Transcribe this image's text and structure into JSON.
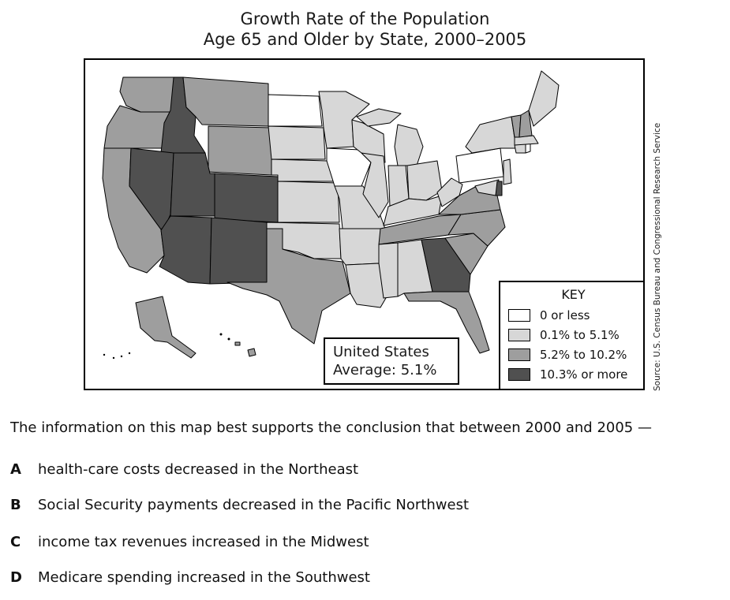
{
  "title": {
    "line1": "Growth Rate of the Population",
    "line2": "Age 65 and Older by State, 2000–2005"
  },
  "colors": {
    "cat1": "#ffffff",
    "cat2": "#d7d7d7",
    "cat3": "#9e9e9e",
    "cat4": "#505050",
    "border": "#000000"
  },
  "average_label": {
    "line1": "United States",
    "line2": "Average: 5.1%"
  },
  "key": {
    "title": "KEY",
    "items": [
      {
        "label": "0 or less",
        "color": "#ffffff"
      },
      {
        "label": "0.1% to 5.1%",
        "color": "#d7d7d7"
      },
      {
        "label": "5.2% to 10.2%",
        "color": "#9e9e9e"
      },
      {
        "label": "10.3% or more",
        "color": "#505050"
      }
    ]
  },
  "source": "Source: U.S. Census Bureau and Congressional Research Service",
  "states_by_category": {
    "0 or less": [
      "ND",
      "IA",
      "PA",
      "RI"
    ],
    "0.1% to 5.1%": [
      "MN",
      "SD",
      "NE",
      "KS",
      "OK",
      "MO",
      "AR",
      "LA",
      "MS",
      "AL",
      "WI",
      "MI",
      "IL",
      "IN",
      "OH",
      "KY",
      "WV",
      "NY",
      "NJ",
      "CT",
      "MA",
      "ME",
      "MD"
    ],
    "5.2% to 10.2%": [
      "WA",
      "OR",
      "CA",
      "MT",
      "WY",
      "TX",
      "TN",
      "VA",
      "NC",
      "SC",
      "FL",
      "VT",
      "NH",
      "HI",
      "AK"
    ],
    "10.3% or more": [
      "ID",
      "NV",
      "UT",
      "CO",
      "AZ",
      "NM",
      "GA",
      "DE"
    ]
  },
  "question": "The information on this map best supports the conclusion that between 2000 and 2005 —",
  "choices": [
    {
      "letter": "A",
      "text": "health-care costs decreased in the Northeast"
    },
    {
      "letter": "B",
      "text": "Social Security payments decreased in the Pacific Northwest"
    },
    {
      "letter": "C",
      "text": "income tax revenues increased in the Midwest"
    },
    {
      "letter": "D",
      "text": "Medicare spending increased in the Southwest"
    }
  ]
}
